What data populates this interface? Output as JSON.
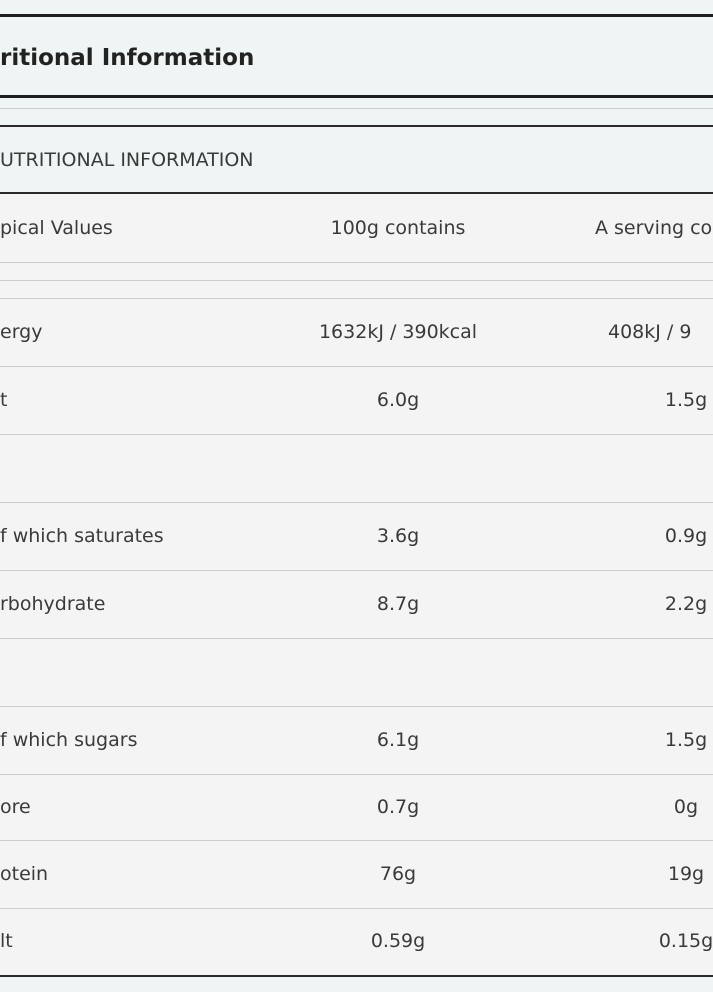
{
  "title": "ritional Information",
  "section_header": "UTRITIONAL INFORMATION",
  "table": {
    "header": [
      "pical Values",
      "100g contains",
      "A serving co"
    ],
    "rows": [
      [
        "ergy",
        "1632kJ / 390kcal",
        "408kJ / 9"
      ],
      [
        "t",
        "6.0g",
        "1.5g"
      ],
      [
        "f which saturates",
        "3.6g",
        "0.9g"
      ],
      [
        "rbohydrate",
        "8.7g",
        "2.2g"
      ],
      [
        "f which sugars",
        "6.1g",
        "1.5g"
      ],
      [
        "ore",
        "0.7g",
        "0g"
      ],
      [
        "otein",
        "76g",
        "19g"
      ],
      [
        "lt",
        "0.59g",
        "0.15g"
      ]
    ]
  }
}
